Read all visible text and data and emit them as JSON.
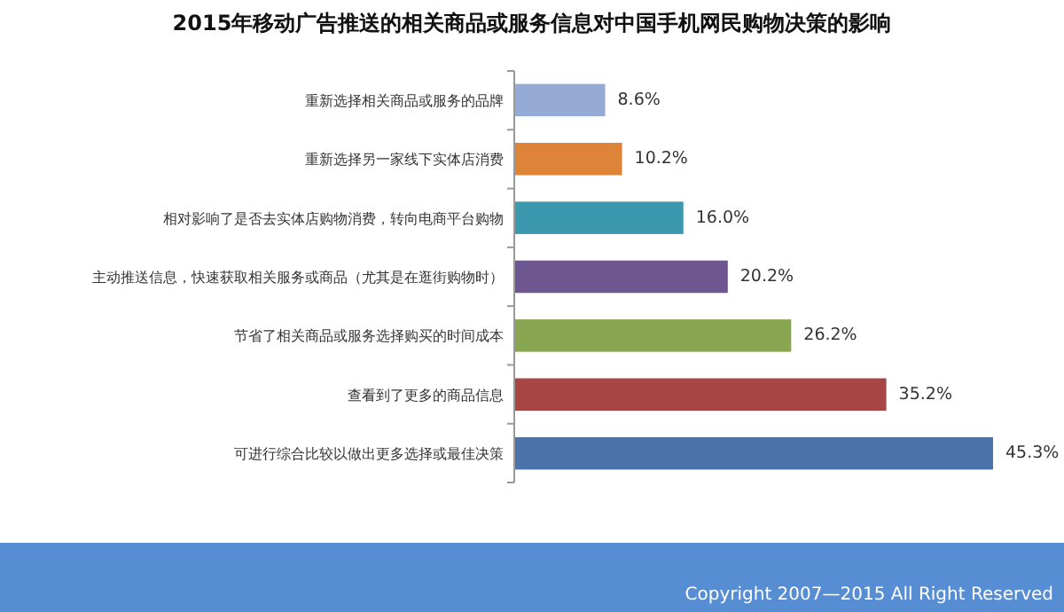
{
  "chart_data": {
    "type": "bar",
    "orientation": "horizontal",
    "title": "2015年移动广告推送的相关商品或服务信息对中国手机网民购物决策的影响",
    "categories": [
      "重新选择相关商品或服务的品牌",
      "重新选择另一家线下实体店消费",
      "相对影响了是否去实体店购物消费，转向电商平台购物",
      "主动推送信息，快速获取相关服务或商品（尤其是在逛街购物时）",
      "节省了相关商品或服务选择购买的时间成本",
      "查看到了更多的商品信息",
      "可进行综合比较以做出更多选择或最佳决策"
    ],
    "values": [
      8.6,
      10.2,
      16.0,
      20.2,
      26.2,
      35.2,
      45.3
    ],
    "value_labels": [
      "8.6%",
      "10.2%",
      "16.0%",
      "20.2%",
      "26.2%",
      "35.2%",
      "45.3%"
    ],
    "colors": [
      "#95abd6",
      "#dd8439",
      "#3b98af",
      "#6e5690",
      "#88a54f",
      "#a84545",
      "#4a74a9"
    ],
    "annotations": [
      "Copyright 2007—2015 All Right Reserved"
    ]
  }
}
